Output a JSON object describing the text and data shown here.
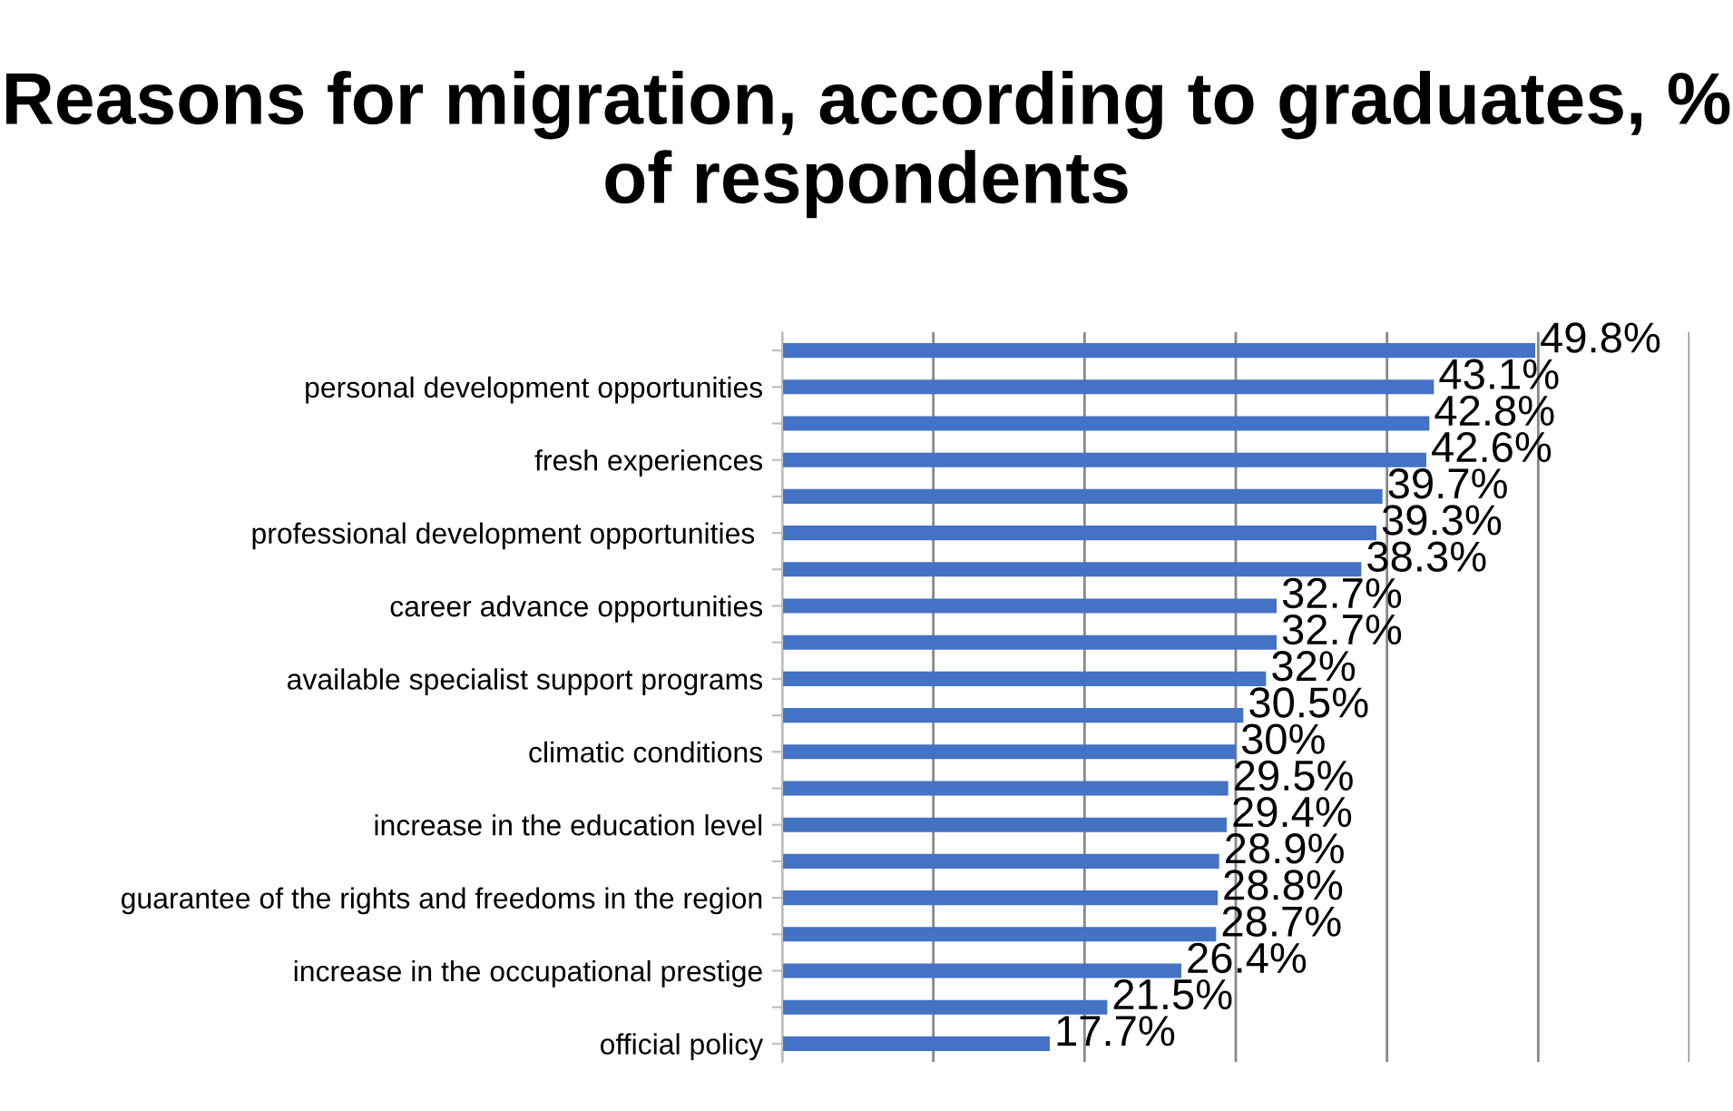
{
  "chart_data": {
    "type": "bar",
    "orientation": "horizontal",
    "title": "Reasons for migration, according to graduates, % of respondents",
    "categories": [
      null,
      "personal development opportunities",
      null,
      "fresh experiences",
      null,
      "professional development opportunities ",
      null,
      "career advance opportunities",
      null,
      "available specialist support programs",
      null,
      "climatic conditions",
      null,
      "increase in the education level",
      null,
      "guarantee of the rights and freedoms in the region",
      null,
      "increase in the occupational prestige",
      null,
      "official policy"
    ],
    "values": [
      49.8,
      43.1,
      42.8,
      42.6,
      39.7,
      39.3,
      38.3,
      32.7,
      32.7,
      32,
      30.5,
      30,
      29.5,
      29.4,
      28.9,
      28.8,
      28.7,
      26.4,
      21.5,
      17.7
    ],
    "value_labels": [
      "49.8%",
      "43.1%",
      "42.8%",
      "42.6%",
      "39.7%",
      "39.3%",
      "38.3%",
      "32.7%",
      "32.7%",
      "32%",
      "30.5%",
      "30%",
      "29.5%",
      "29.4%",
      "28.9%",
      "28.8%",
      "28.7%",
      "26.4%",
      "21.5%",
      "17.7%"
    ],
    "color": "#4472c4",
    "xlim": [
      0,
      60
    ],
    "xticks": [
      {
        "value": 0,
        "label": null
      },
      {
        "value": 10,
        "label": null
      },
      {
        "value": 20,
        "label": null
      },
      {
        "value": 30,
        "label": null
      },
      {
        "value": 40,
        "label": null
      },
      {
        "value": 50,
        "label": null
      },
      {
        "value": 60,
        "label": null
      }
    ],
    "grid": "x",
    "tick_labels": "y",
    "legend": false
  }
}
